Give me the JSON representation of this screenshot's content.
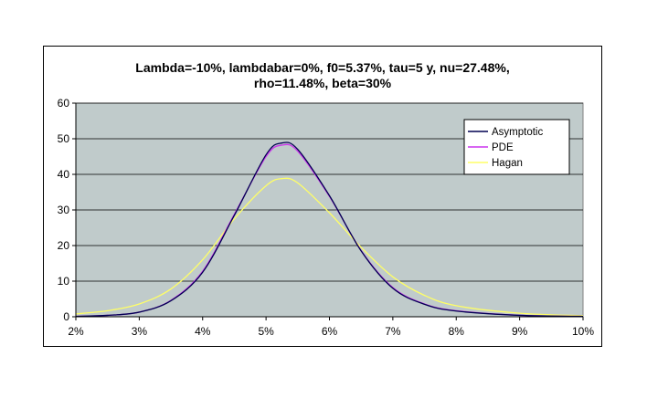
{
  "chart_data": {
    "type": "line",
    "title_lines": [
      "Lambda=-10%, lambdabar=0%, f0=5.37%, tau=5 y, nu=27.48%,",
      "rho=11.48%, beta=30%"
    ],
    "xlabel": "",
    "ylabel": "",
    "x_tick_labels": [
      "2%",
      "3%",
      "4%",
      "5%",
      "6%",
      "7%",
      "8%",
      "9%",
      "10%"
    ],
    "x_ticks": [
      0.02,
      0.03,
      0.04,
      0.05,
      0.06,
      0.07,
      0.08,
      0.09,
      0.1
    ],
    "y_ticks": [
      0,
      10,
      20,
      30,
      40,
      50,
      60
    ],
    "y_tick_labels": [
      "0",
      "10",
      "20",
      "30",
      "40",
      "50",
      "60"
    ],
    "xlim": [
      0.02,
      0.1
    ],
    "ylim": [
      0,
      60
    ],
    "grid": "horizontal",
    "legend_position": "right",
    "plot_background": "#c0cbcb",
    "x": [
      0.02,
      0.025,
      0.03,
      0.035,
      0.04,
      0.045,
      0.05,
      0.0525,
      0.055,
      0.06,
      0.065,
      0.07,
      0.075,
      0.08,
      0.09,
      0.1
    ],
    "series": [
      {
        "name": "Asymptotic",
        "color": "#000050",
        "values": [
          0.1,
          0.4,
          1.3,
          4.5,
          12.5,
          28.5,
          45.5,
          48.8,
          47.0,
          34.0,
          18.5,
          8.0,
          3.5,
          1.6,
          0.4,
          0.1
        ]
      },
      {
        "name": "PDE",
        "color": "#cc33ee",
        "values": [
          0.1,
          0.4,
          1.3,
          4.6,
          12.8,
          28.8,
          45.0,
          48.2,
          46.5,
          33.8,
          18.6,
          8.2,
          3.6,
          1.7,
          0.4,
          0.1
        ]
      },
      {
        "name": "Hagan",
        "color": "#ffff66",
        "values": [
          0.8,
          1.7,
          3.6,
          7.8,
          16.0,
          27.5,
          36.8,
          38.8,
          37.6,
          29.2,
          19.5,
          11.2,
          6.0,
          3.1,
          1.0,
          0.3
        ]
      }
    ]
  }
}
